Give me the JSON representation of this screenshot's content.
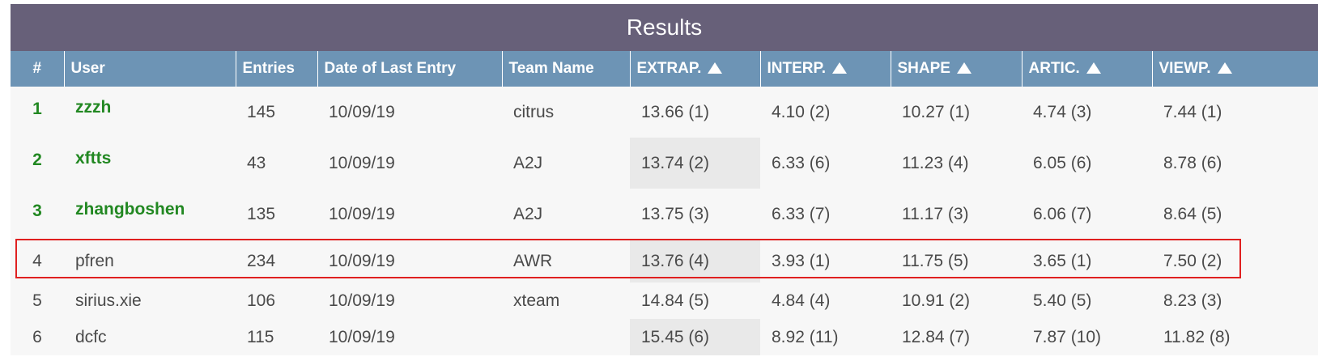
{
  "title": "Results",
  "columns": [
    "#",
    "User",
    "Entries",
    "Date of Last Entry",
    "Team Name",
    "EXTRAP.",
    "INTERP.",
    "SHAPE",
    "ARTIC.",
    "VIEWP."
  ],
  "sortable_columns": [
    "EXTRAP.",
    "INTERP.",
    "SHAPE",
    "ARTIC.",
    "VIEWP."
  ],
  "rows": [
    {
      "rank": "1",
      "user": "zzzh",
      "entries": "145",
      "date": "10/09/19",
      "team": "citrus",
      "extrap": "13.66 (1)",
      "interp": "4.10 (2)",
      "shape": "10.27 (1)",
      "artic": "4.74 (3)",
      "viewp": "7.44 (1)"
    },
    {
      "rank": "2",
      "user": "xftts",
      "entries": "43",
      "date": "10/09/19",
      "team": "A2J",
      "extrap": "13.74 (2)",
      "interp": "6.33 (6)",
      "shape": "11.23 (4)",
      "artic": "6.05 (6)",
      "viewp": "8.78 (6)"
    },
    {
      "rank": "3",
      "user": "zhangboshen",
      "entries": "135",
      "date": "10/09/19",
      "team": "A2J",
      "extrap": "13.75 (3)",
      "interp": "6.33 (7)",
      "shape": "11.17 (3)",
      "artic": "6.06 (7)",
      "viewp": "8.64 (5)"
    },
    {
      "rank": "4",
      "user": "pfren",
      "entries": "234",
      "date": "10/09/19",
      "team": "AWR",
      "extrap": "13.76 (4)",
      "interp": "3.93 (1)",
      "shape": "11.75 (5)",
      "artic": "3.65 (1)",
      "viewp": "7.50 (2)"
    },
    {
      "rank": "5",
      "user": "sirius.xie",
      "entries": "106",
      "date": "10/09/19",
      "team": "xteam",
      "extrap": "14.84 (5)",
      "interp": "4.84 (4)",
      "shape": "10.91 (2)",
      "artic": "5.40 (5)",
      "viewp": "8.23 (3)"
    },
    {
      "rank": "6",
      "user": "dcfc",
      "entries": "115",
      "date": "10/09/19",
      "team": "",
      "extrap": "15.45 (6)",
      "interp": "8.92 (11)",
      "shape": "12.84 (7)",
      "artic": "7.87 (10)",
      "viewp": "11.82 (8)"
    }
  ],
  "highlighted_row": "4",
  "colors": {
    "title_bar": "#676079",
    "header": "#6d94b5",
    "top_rank": "#228822",
    "highlight": "#e02020"
  },
  "icons": {
    "sort": "triangle-up-icon"
  }
}
